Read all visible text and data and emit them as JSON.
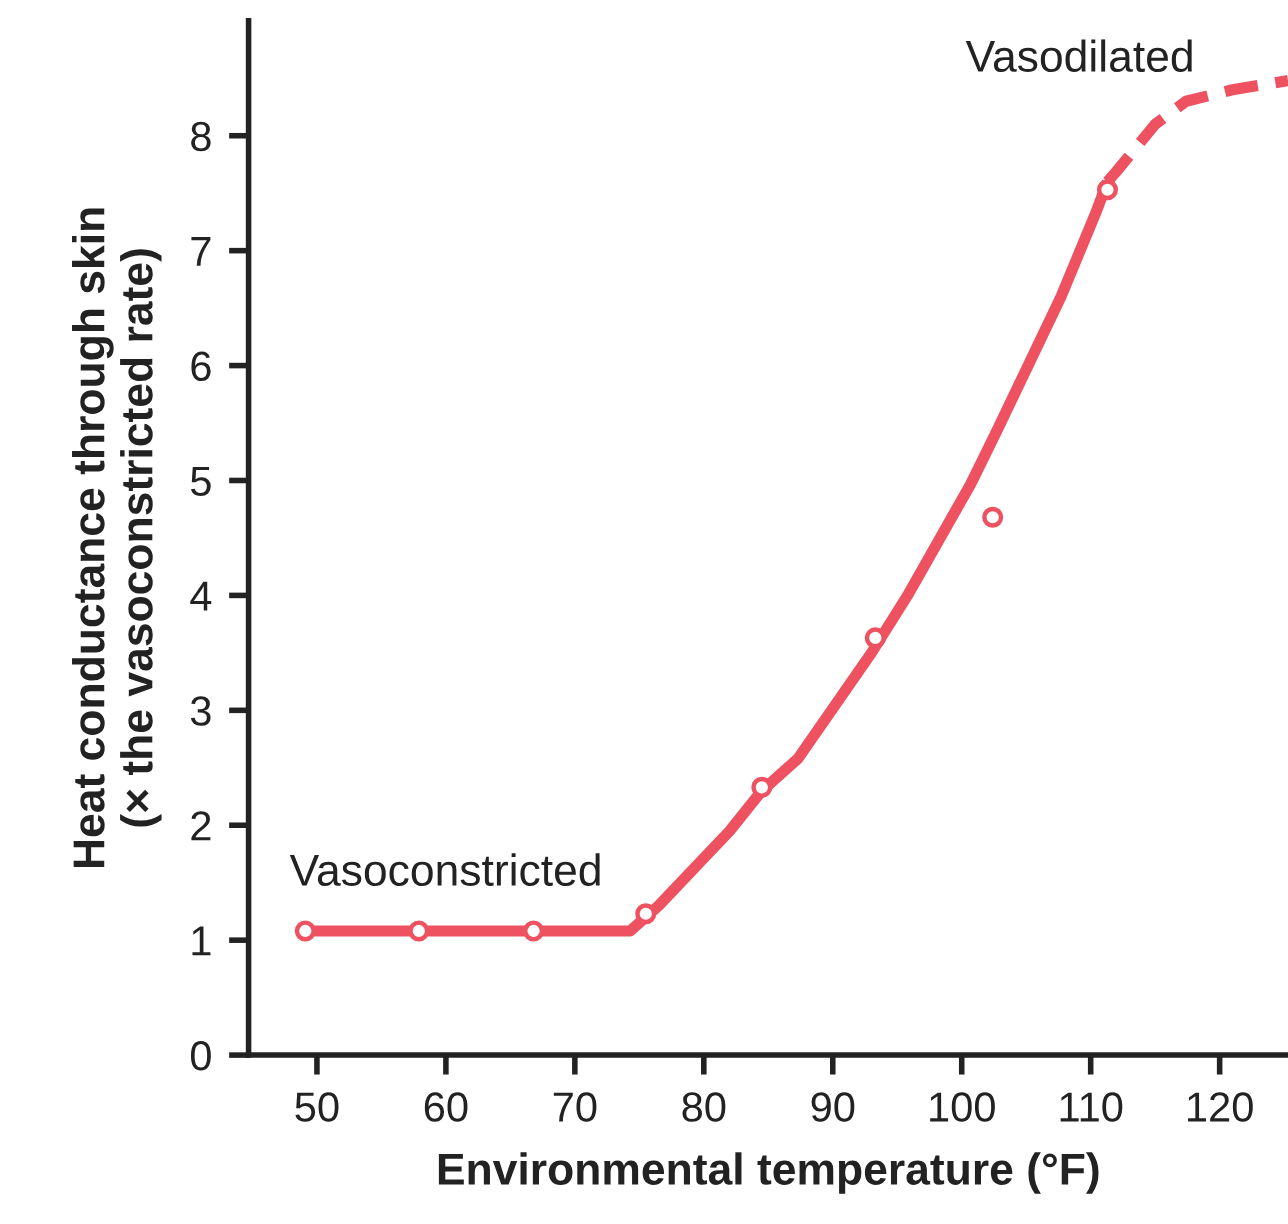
{
  "chart_data": {
    "type": "line",
    "xlabel": "Environmental temperature (°F)",
    "ylabel": "Heat conductance through skin\n(× the vasoconstricted rate)",
    "xlim": [
      44.7,
      125.3
    ],
    "ylim": [
      0,
      9
    ],
    "xticks": [
      50,
      60,
      70,
      80,
      90,
      100,
      110,
      120
    ],
    "yticks": [
      0,
      1,
      2,
      3,
      4,
      5,
      6,
      7,
      8
    ],
    "grid": false,
    "legend": false,
    "series": [
      {
        "color": "#ee5261",
        "line_style": "solid",
        "marker": "none",
        "x": [
          49.1,
          74.3,
          76.5,
          82,
          84.5,
          87.3,
          93,
          95.8,
          100.7,
          102.8,
          107.7,
          110.4,
          111.3
        ],
        "values": [
          1.08,
          1.08,
          1.3,
          1.95,
          2.3,
          2.58,
          3.5,
          4.0,
          4.97,
          5.45,
          6.6,
          7.33,
          7.6
        ]
      },
      {
        "color": "#ee5261",
        "line_style": "dashed",
        "marker": "none",
        "x": [
          111.3,
          112,
          115,
          117.4,
          121,
          125.3
        ],
        "values": [
          7.6,
          7.69,
          8.1,
          8.3,
          8.4,
          8.48
        ]
      },
      {
        "type": "scatter",
        "color": "#ee5261",
        "marker": "circle",
        "x": [
          49.1,
          57.9,
          66.8,
          75.5,
          84.5,
          93.3,
          102.4,
          111.3
        ],
        "values": [
          1.08,
          1.08,
          1.08,
          1.23,
          2.33,
          3.63,
          4.68,
          7.53
        ]
      }
    ],
    "annotations": [
      "Vasoconstricted",
      "Vasodilated"
    ]
  }
}
